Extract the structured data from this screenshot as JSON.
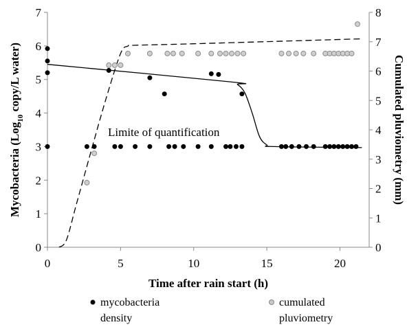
{
  "chart_data": {
    "type": "scatter",
    "x_axis": {
      "label": "Time after rain start (h)",
      "range": [
        0,
        22
      ],
      "ticks": [
        "0",
        "5",
        "10",
        "15",
        "20"
      ]
    },
    "y_left_axis": {
      "label_prefix": "Mycobacteria  (Log",
      "label_subscript": "10",
      "label_suffix": " copy/L water)",
      "range": [
        0,
        7
      ],
      "ticks": [
        "0",
        "1",
        "2",
        "3",
        "4",
        "5",
        "6",
        "7"
      ]
    },
    "y_right_axis": {
      "label": "Cumulated pluviometry (mm)",
      "range": [
        0,
        8
      ],
      "ticks": [
        "0",
        "1",
        "2",
        "3",
        "4",
        "5",
        "6",
        "7",
        "8"
      ]
    },
    "annotation": "Limite of quantification",
    "series": [
      {
        "name": "mycobacteria density",
        "axis": "left",
        "marker": "filled-circle",
        "color": "#000000",
        "points": [
          [
            0,
            5.92
          ],
          [
            0,
            5.55
          ],
          [
            0,
            5.2
          ],
          [
            0,
            3.0
          ],
          [
            2.7,
            3.0
          ],
          [
            3.2,
            3.0
          ],
          [
            4.2,
            5.27
          ],
          [
            4.6,
            3.0
          ],
          [
            5.0,
            3.0
          ],
          [
            6.0,
            3.0
          ],
          [
            7.0,
            5.05
          ],
          [
            7.0,
            3.0
          ],
          [
            8.0,
            4.57
          ],
          [
            8.3,
            3.0
          ],
          [
            8.7,
            3.0
          ],
          [
            9.3,
            3.0
          ],
          [
            10.3,
            3.0
          ],
          [
            11.2,
            5.17
          ],
          [
            11.2,
            3.0
          ],
          [
            11.7,
            5.15
          ],
          [
            12.2,
            3.0
          ],
          [
            12.5,
            3.0
          ],
          [
            12.9,
            3.0
          ],
          [
            13.3,
            4.57
          ],
          [
            13.3,
            3.0
          ],
          [
            16.0,
            3.0
          ],
          [
            16.3,
            3.0
          ],
          [
            16.7,
            3.0
          ],
          [
            17.2,
            3.0
          ],
          [
            17.7,
            3.0
          ],
          [
            18.2,
            3.0
          ],
          [
            19.0,
            3.0
          ],
          [
            19.3,
            3.0
          ],
          [
            19.6,
            3.0
          ],
          [
            19.9,
            3.0
          ],
          [
            20.2,
            3.0
          ],
          [
            20.5,
            3.0
          ],
          [
            20.8,
            3.0
          ],
          [
            21.1,
            3.0
          ]
        ]
      },
      {
        "name": "cumulated pluviometry",
        "axis": "right",
        "marker": "hollow-gray-circle",
        "color": "#b3b3b3",
        "points": [
          [
            2.7,
            2.2
          ],
          [
            3.2,
            3.2
          ],
          [
            4.2,
            6.2
          ],
          [
            4.6,
            6.2
          ],
          [
            5.0,
            6.2
          ],
          [
            5.5,
            6.6
          ],
          [
            7.0,
            6.6
          ],
          [
            8.2,
            6.6
          ],
          [
            8.6,
            6.6
          ],
          [
            9.2,
            6.6
          ],
          [
            10.3,
            6.6
          ],
          [
            11.2,
            6.6
          ],
          [
            11.8,
            6.6
          ],
          [
            12.2,
            6.6
          ],
          [
            12.6,
            6.6
          ],
          [
            13.0,
            6.6
          ],
          [
            13.4,
            6.6
          ],
          [
            16.0,
            6.6
          ],
          [
            16.5,
            6.6
          ],
          [
            17.0,
            6.6
          ],
          [
            17.5,
            6.6
          ],
          [
            18.2,
            6.6
          ],
          [
            19.0,
            6.6
          ],
          [
            19.3,
            6.6
          ],
          [
            19.6,
            6.6
          ],
          [
            19.9,
            6.6
          ],
          [
            20.2,
            6.6
          ],
          [
            20.5,
            6.6
          ],
          [
            20.8,
            6.6
          ],
          [
            21.2,
            7.6
          ]
        ]
      }
    ],
    "fit_lines": [
      {
        "of_series": "mycobacteria density",
        "style": "solid",
        "axis": "left",
        "points": [
          [
            0,
            5.45
          ],
          [
            12.5,
            4.93
          ],
          [
            13.0,
            4.85
          ],
          [
            13.5,
            4.6
          ],
          [
            14.0,
            4.0
          ],
          [
            14.5,
            3.3
          ],
          [
            15.0,
            3.05
          ],
          [
            15.5,
            3.0
          ],
          [
            21.5,
            2.97
          ]
        ]
      },
      {
        "of_series": "cumulated pluviometry",
        "style": "dashed",
        "axis": "right",
        "points": [
          [
            0.8,
            0.0
          ],
          [
            1.3,
            0.25
          ],
          [
            2.0,
            1.5
          ],
          [
            3.0,
            3.3
          ],
          [
            4.0,
            5.05
          ],
          [
            5.0,
            6.6
          ],
          [
            5.5,
            6.85
          ],
          [
            6.0,
            6.88
          ],
          [
            10.0,
            6.93
          ],
          [
            21.5,
            7.1
          ]
        ]
      }
    ],
    "legend": {
      "position": "bottom",
      "items": [
        {
          "line1": "mycobacteria",
          "line2": "density"
        },
        {
          "line1": "cumulated",
          "line2": "pluviometry"
        }
      ]
    }
  }
}
